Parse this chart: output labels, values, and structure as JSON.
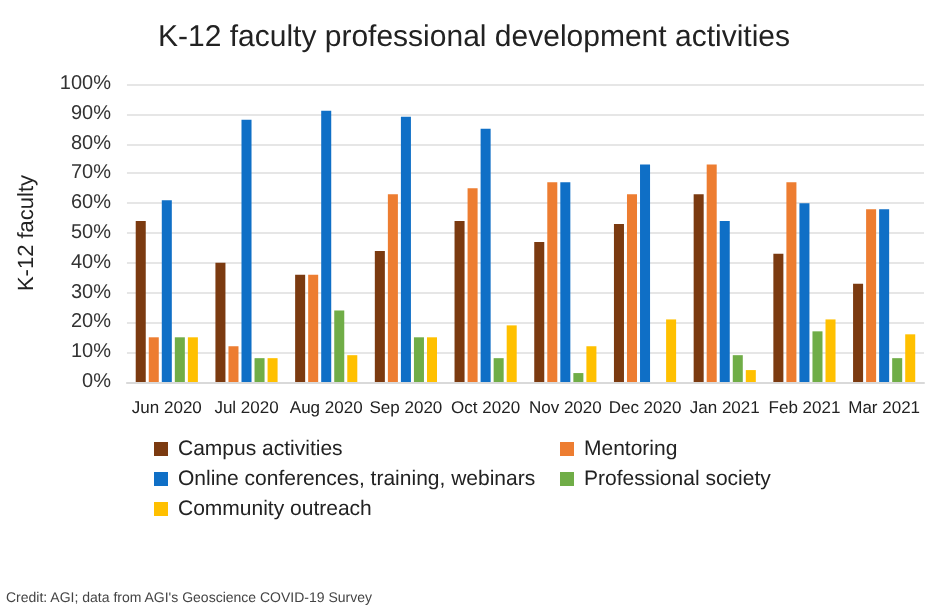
{
  "chart_data": {
    "type": "bar",
    "title": "K-12 faculty professional development activities",
    "ylabel": "K-12 faculty",
    "categories": [
      "Jun 2020",
      "Jul 2020",
      "Aug 2020",
      "Sep 2020",
      "Oct 2020",
      "Nov 2020",
      "Dec 2020",
      "Jan 2021",
      "Feb 2021",
      "Mar 2021"
    ],
    "series": [
      {
        "name": "Campus activities",
        "color": "#7b3a10",
        "values": [
          54,
          40,
          36,
          44,
          54,
          47,
          53,
          63,
          43,
          33
        ]
      },
      {
        "name": "Mentoring",
        "color": "#ed7d31",
        "values": [
          15,
          12,
          36,
          63,
          65,
          67,
          63,
          73,
          67,
          58
        ]
      },
      {
        "name": "Online conferences, training, webinars",
        "color": "#0f6fc6",
        "values": [
          61,
          88,
          91,
          89,
          85,
          67,
          73,
          54,
          60,
          58
        ]
      },
      {
        "name": "Professional society",
        "color": "#70ad47",
        "values": [
          15,
          8,
          24,
          15,
          8,
          3,
          0,
          9,
          17,
          8
        ]
      },
      {
        "name": "Community outreach",
        "color": "#ffc000",
        "values": [
          15,
          8,
          9,
          15,
          19,
          12,
          21,
          4,
          21,
          16
        ]
      }
    ],
    "ylim": [
      0,
      100
    ],
    "yticks": [
      {
        "value": 0,
        "label": "0%"
      },
      {
        "value": 10,
        "label": "10%"
      },
      {
        "value": 20,
        "label": "20%"
      },
      {
        "value": 30,
        "label": "30%"
      },
      {
        "value": 40,
        "label": "40%"
      },
      {
        "value": 50,
        "label": "50%"
      },
      {
        "value": 60,
        "label": "60%"
      },
      {
        "value": 70,
        "label": "70%"
      },
      {
        "value": 80,
        "label": "80%"
      },
      {
        "value": 90,
        "label": "90%"
      },
      {
        "value": 100,
        "label": "100%"
      }
    ],
    "grid": "y",
    "legend": "bottom",
    "annotations": [
      "Credit: AGI; data from AGI's Geoscience COVID-19 Survey"
    ]
  }
}
